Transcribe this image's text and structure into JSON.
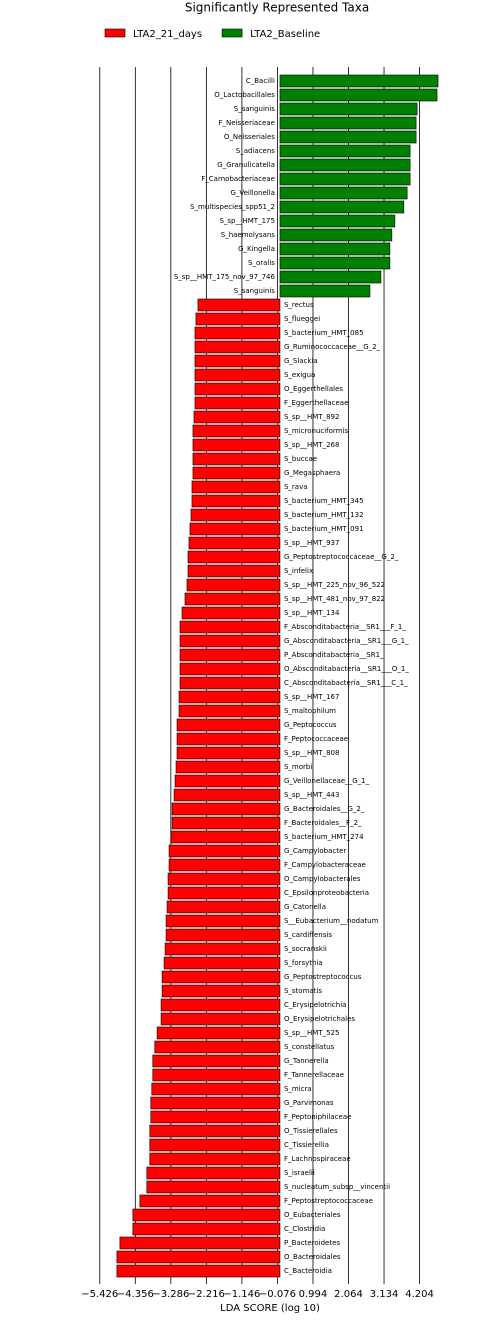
{
  "chart_data": {
    "type": "barh",
    "title": "Significantly Represented Taxa",
    "xlabel": "LDA SCORE (log 10)",
    "legend": "upper center",
    "grid": true,
    "categories": [
      "C_Bacilli",
      "O_Lactobacillales",
      "S_sanguinis",
      "F_Neisseriaceae",
      "O_Neisseriales",
      "S_adiacens",
      "G_Granulicatella",
      "F_Carnobacteriaceae",
      "G_Veillonella",
      "S_multispecies_spp51_2",
      "S_sp__HMT_175",
      "S_haemolysans",
      "G_Kingella",
      "S_oralis",
      "S_sp__HMT_175_nov_97_746",
      "S_sanguinis",
      "S_rectus",
      "S_flueggei",
      "S_bacterium_HMT_085",
      "G_Ruminococcaceae__G_2_",
      "G_Slackia",
      "S_exigua",
      "O_Eggerthellales",
      "F_Eggerthellaceae",
      "S_sp__HMT_892",
      "S_micronuciformis",
      "S_sp__HMT_268",
      "S_buccae",
      "G_Megasphaera",
      "S_rava",
      "S_bacterium_HMT_345",
      "S_bacterium_HMT_132",
      "S_bacterium_HMT_091",
      "S_sp__HMT_937",
      "G_Peptostreptococcaceae__G_2_",
      "S_infelix",
      "S_sp__HMT_225_nov_96_522",
      "S_sp__HMT_481_nov_97_822",
      "S_sp__HMT_134",
      "F_Absconditabacteria__SR1___F_1_",
      "G_Absconditabacteria__SR1___G_1_",
      "P_Absconditabacteria__SR1_",
      "O_Absconditabacteria__SR1___O_1_",
      "C_Absconditabacteria__SR1___C_1_",
      "S_sp__HMT_167",
      "S_maltophilum",
      "G_Peptococcus",
      "F_Peptococcaceae",
      "S_sp__HMT_808",
      "S_morbi",
      "G_Veillonellaceae__G_1_",
      "S_sp__HMT_443",
      "G_Bacteroidales__G_2_",
      "F_Bacteroidales__F_2_",
      "S_bacterium_HMT_274",
      "G_Campylobacter",
      "F_Campylobacteraceae",
      "O_Campylobacterales",
      "C_Epsilonproteobacteria",
      "G_Catonella",
      "S__Eubacterium__nodatum",
      "S_cardiffensis",
      "S_socranskii",
      "S_forsythia",
      "G_Peptostreptococcus",
      "S_stomatis",
      "C_Erysipelotrichia",
      "O_Erysipelotrichales",
      "S_sp__HMT_525",
      "S_constellatus",
      "G_Tannerella",
      "F_Tannerellaceae",
      "S_micra",
      "G_Parvimonas",
      "F_Peptoniphilaceae",
      "O_Tissierellales",
      "C_Tissierellia",
      "F_Lachnospiraceae",
      "S_israelii",
      "S_nucleatum_subsp__vincentii",
      "F_Peptostreptococcaceae",
      "O_Eubacteriales",
      "C_Clostridia",
      "P_Bacteroidetes",
      "O_Bacteroidales",
      "C_Bacteroidia"
    ],
    "series": [
      {
        "name": "LTA2_21_days",
        "color": "#ff0000",
        "values": [
          null,
          null,
          null,
          null,
          null,
          null,
          null,
          null,
          null,
          null,
          null,
          null,
          null,
          null,
          null,
          null,
          -2.47,
          -2.53,
          -2.56,
          -2.56,
          -2.56,
          -2.56,
          -2.56,
          -2.56,
          -2.59,
          -2.62,
          -2.62,
          -2.62,
          -2.62,
          -2.65,
          -2.65,
          -2.68,
          -2.71,
          -2.74,
          -2.77,
          -2.77,
          -2.8,
          -2.86,
          -2.95,
          -3.01,
          -3.01,
          -3.01,
          -3.01,
          -3.01,
          -3.04,
          -3.04,
          -3.1,
          -3.1,
          -3.1,
          -3.13,
          -3.16,
          -3.19,
          -3.25,
          -3.25,
          -3.28,
          -3.34,
          -3.34,
          -3.37,
          -3.37,
          -3.4,
          -3.43,
          -3.43,
          -3.46,
          -3.49,
          -3.55,
          -3.55,
          -3.58,
          -3.58,
          -3.7,
          -3.77,
          -3.83,
          -3.83,
          -3.86,
          -3.89,
          -3.89,
          -3.92,
          -3.92,
          -3.92,
          -4.01,
          -4.01,
          -4.22,
          -4.43,
          -4.43,
          -4.82,
          -4.91,
          -4.91
        ]
      },
      {
        "name": "LTA2_Baseline",
        "color": "#008000",
        "values": [
          4.76,
          4.73,
          4.13,
          4.1,
          4.1,
          3.92,
          3.92,
          3.92,
          3.83,
          3.73,
          3.46,
          3.37,
          3.31,
          3.31,
          3.04,
          2.71,
          null,
          null,
          null,
          null,
          null,
          null,
          null,
          null,
          null,
          null,
          null,
          null,
          null,
          null,
          null,
          null,
          null,
          null,
          null,
          null,
          null,
          null,
          null,
          null,
          null,
          null,
          null,
          null,
          null,
          null,
          null,
          null,
          null,
          null,
          null,
          null,
          null,
          null,
          null,
          null,
          null,
          null,
          null,
          null,
          null,
          null,
          null,
          null,
          null,
          null,
          null,
          null,
          null,
          null,
          null,
          null,
          null,
          null,
          null,
          null,
          null,
          null,
          null,
          null,
          null,
          null,
          null,
          null,
          null,
          null
        ]
      }
    ],
    "xlim": [
      -5.6,
      5.0
    ],
    "xticks": [
      {
        "value": -5.426,
        "label": "−5.426"
      },
      {
        "value": -4.356,
        "label": "−4.356"
      },
      {
        "value": -3.286,
        "label": "−3.286"
      },
      {
        "value": -2.216,
        "label": "−2.216"
      },
      {
        "value": -1.146,
        "label": "−1.146"
      },
      {
        "value": -0.076,
        "label": "−0.076"
      },
      0.994,
      2.064,
      3.134,
      4.204
    ]
  }
}
